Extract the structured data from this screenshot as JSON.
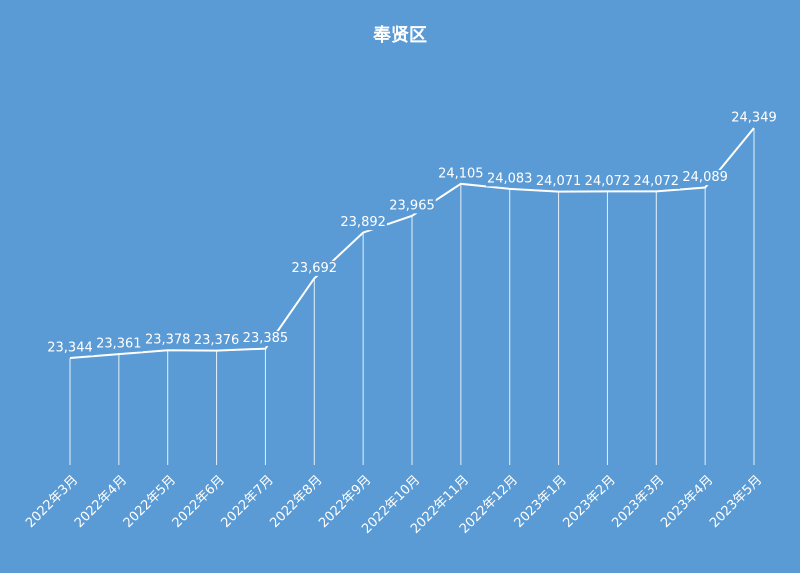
{
  "chart_data": {
    "type": "line",
    "title": "奉贤区",
    "categories": [
      "2022年3月",
      "2022年4月",
      "2022年5月",
      "2022年6月",
      "2022年7月",
      "2022年8月",
      "2022年9月",
      "2022年10月",
      "2022年11月",
      "2022年12月",
      "2023年1月",
      "2023年2月",
      "2023年3月",
      "2023年4月",
      "2023年5月"
    ],
    "values": [
      23344,
      23361,
      23378,
      23376,
      23385,
      23692,
      23892,
      23965,
      24105,
      24083,
      24071,
      24072,
      24072,
      24089,
      24349
    ],
    "value_labels": [
      "23,344",
      "23,361",
      "23,378",
      "23,376",
      "23,385",
      "23,692",
      "23,892",
      "23,965",
      "24,105",
      "24,083",
      "24,071",
      "24,072",
      "24,072",
      "24,089",
      "24,349"
    ],
    "color": "#ffffff",
    "background": "#5b9bd5"
  }
}
